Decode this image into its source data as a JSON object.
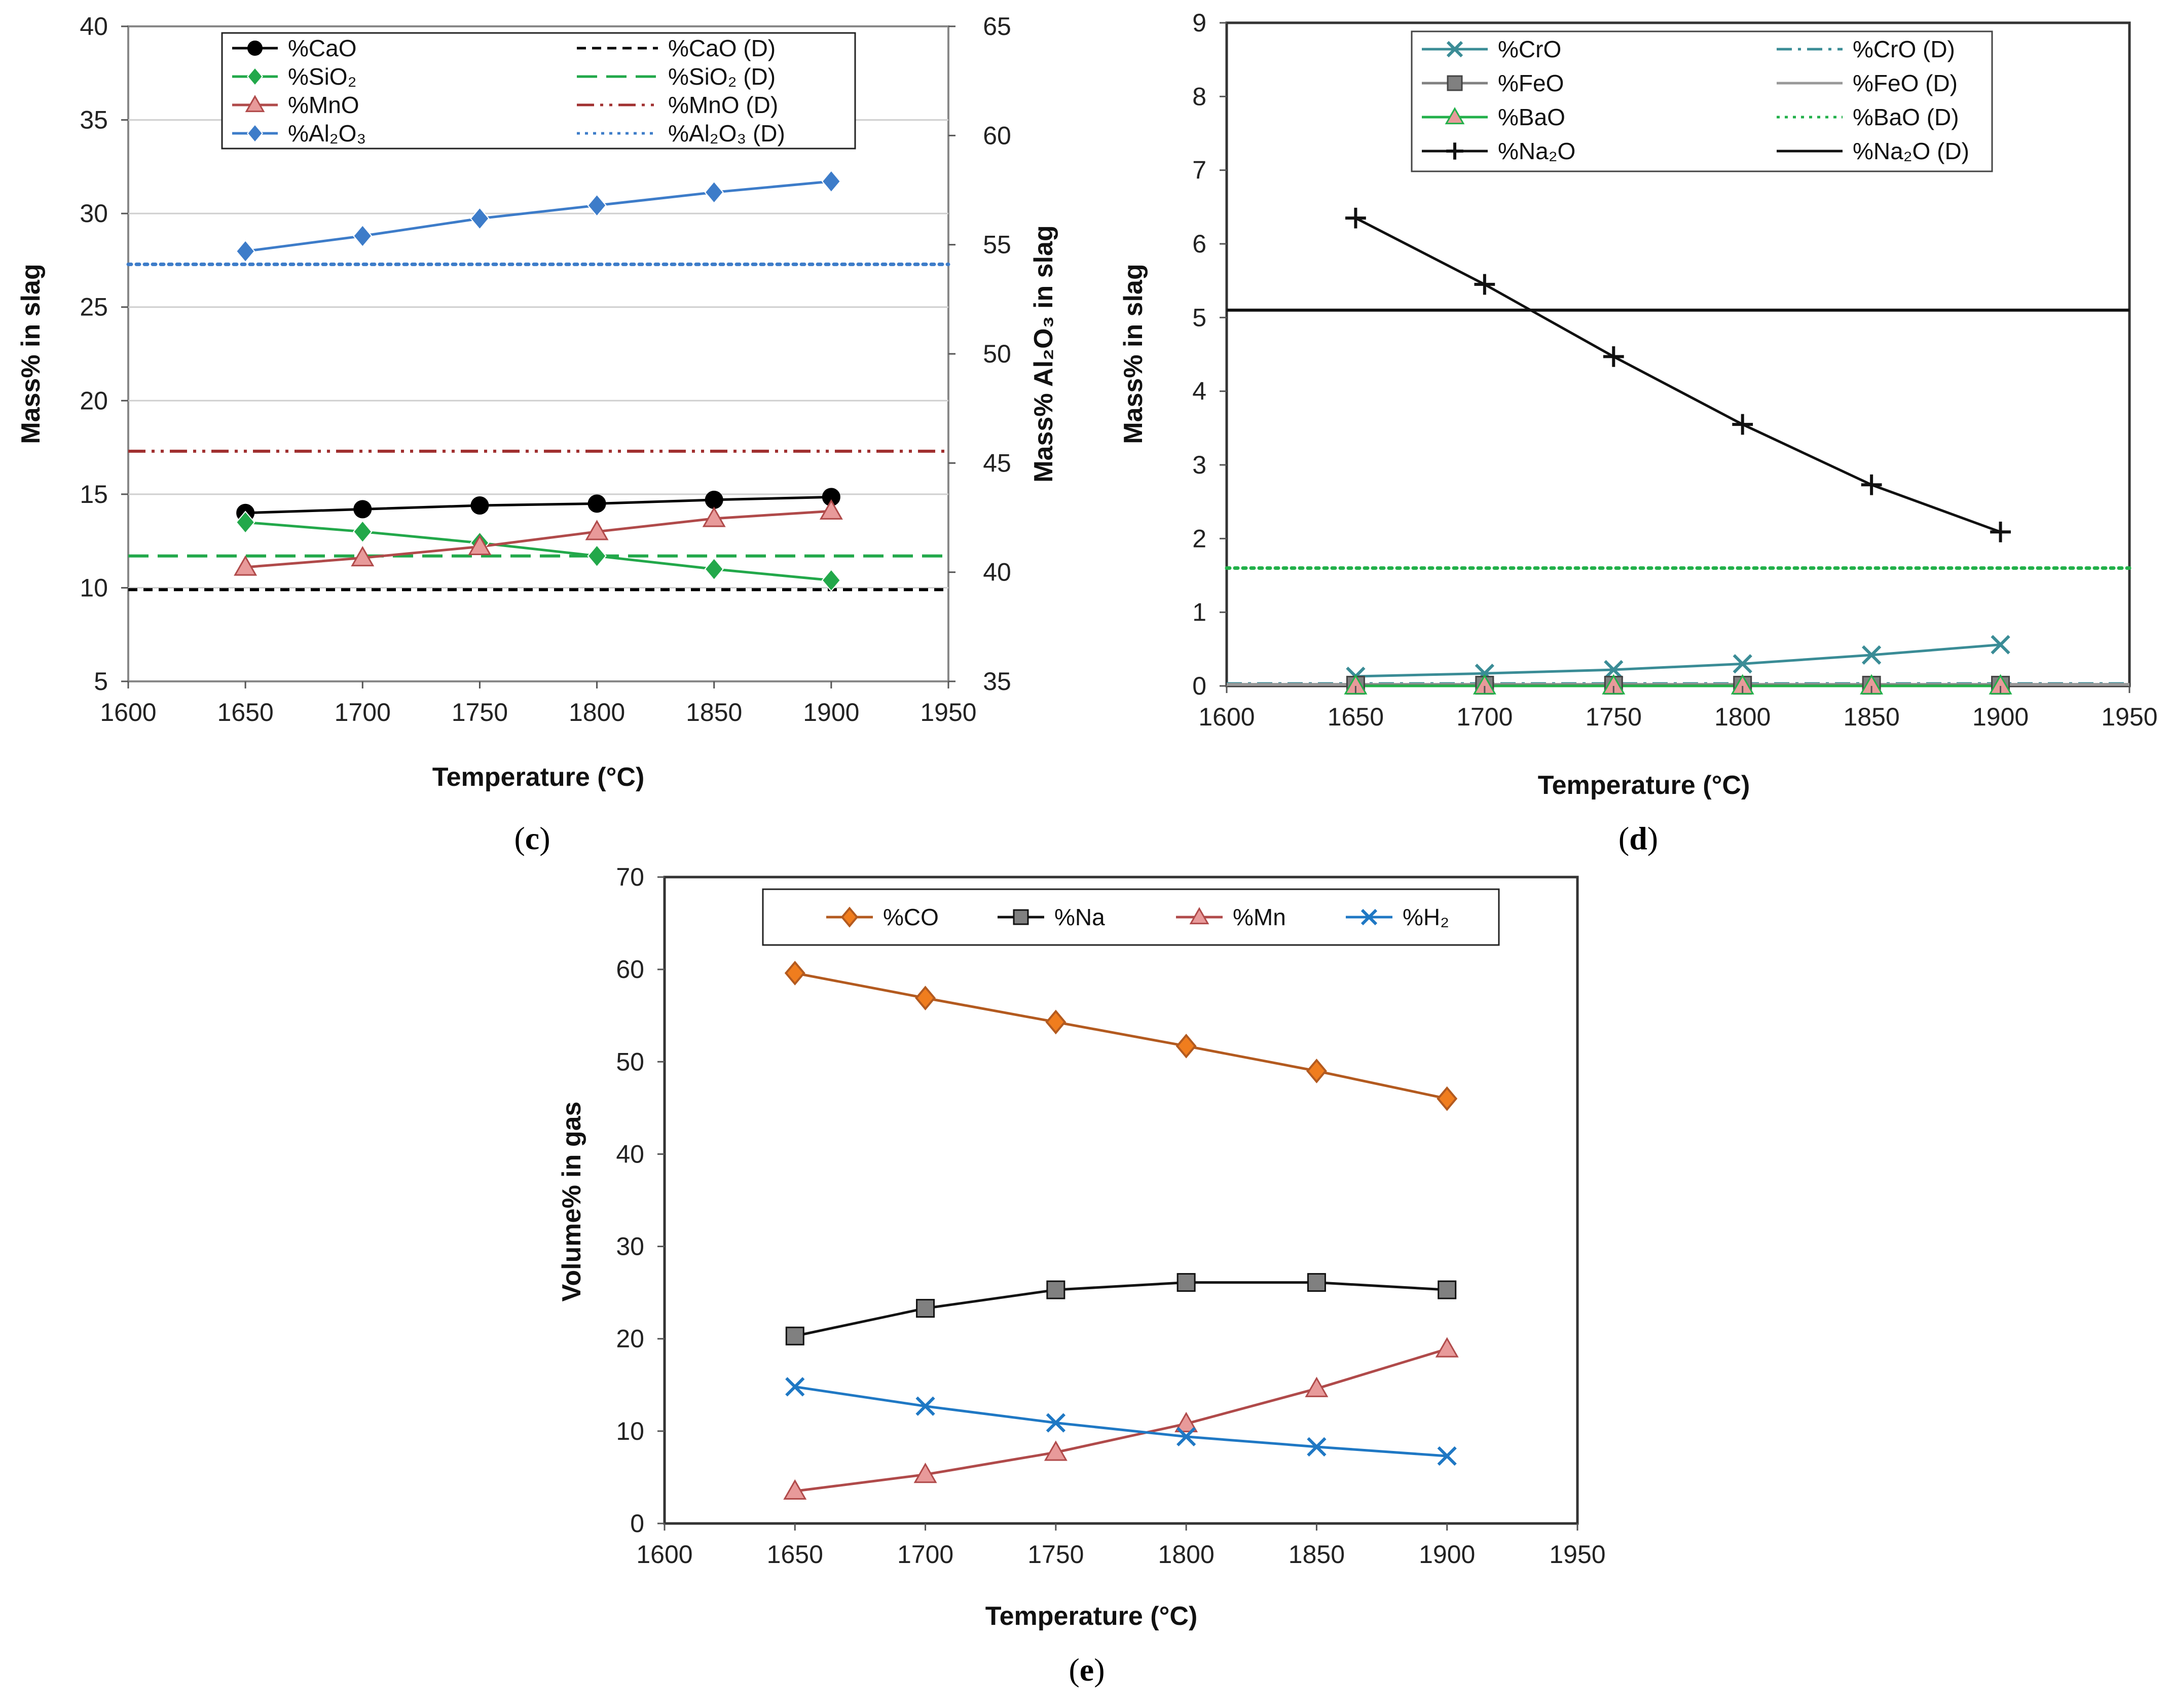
{
  "chart_data": [
    {
      "id": "c",
      "type": "line",
      "panel_label": {
        "open": "(",
        "letter": "c",
        "close": ")"
      },
      "xlabel": "Temperature (°C)",
      "ylabel": "Mass% in slag",
      "ylabel_right": "Mass% Al₂O₃ in slag",
      "xlim": [
        1600,
        1950
      ],
      "ylim": [
        5,
        40
      ],
      "ylim_right": [
        35,
        65
      ],
      "xticks": [
        1600,
        1650,
        1700,
        1750,
        1800,
        1850,
        1900,
        1950
      ],
      "yticks": [
        5,
        10,
        15,
        20,
        25,
        30,
        35,
        40
      ],
      "yticks_right": [
        35,
        40,
        45,
        50,
        55,
        60,
        65
      ],
      "legend_position": "top",
      "series": [
        {
          "name": "%CaO",
          "axis": "left",
          "color": "#000000",
          "marker": "circle",
          "x": [
            1650,
            1700,
            1750,
            1800,
            1850,
            1900
          ],
          "values": [
            14.0,
            14.2,
            14.4,
            14.5,
            14.7,
            14.85
          ]
        },
        {
          "name": "%SiO₂",
          "axis": "left",
          "color": "#22a84a",
          "marker": "diamond",
          "x": [
            1650,
            1700,
            1750,
            1800,
            1850,
            1900
          ],
          "values": [
            13.5,
            13.0,
            12.4,
            11.7,
            11.0,
            10.4
          ]
        },
        {
          "name": "%MnO",
          "axis": "left",
          "color": "#b04a4a",
          "marker": "triangle",
          "x": [
            1650,
            1700,
            1750,
            1800,
            1850,
            1900
          ],
          "values": [
            11.1,
            11.6,
            12.2,
            13.0,
            13.7,
            14.1
          ]
        },
        {
          "name": "%Al₂O₃",
          "axis": "right",
          "color": "#3d7cc9",
          "marker": "diamond",
          "x": [
            1650,
            1700,
            1750,
            1800,
            1850,
            1900
          ],
          "values": [
            54.7,
            55.4,
            56.2,
            56.8,
            57.4,
            57.9
          ]
        }
      ],
      "reference_lines": [
        {
          "name": "%CaO (D)",
          "axis": "left",
          "value": 9.9,
          "color": "#000000",
          "dash": "dash"
        },
        {
          "name": "%SiO₂ (D)",
          "axis": "left",
          "value": 11.7,
          "color": "#22a84a",
          "dash": "longdash"
        },
        {
          "name": "%MnO (D)",
          "axis": "left",
          "value": 17.3,
          "color": "#a03030",
          "dash": "dashdotdot"
        },
        {
          "name": "%Al₂O₃ (D)",
          "axis": "right",
          "value": 54.1,
          "color": "#3d7cc9",
          "dash": "dot"
        }
      ]
    },
    {
      "id": "d",
      "type": "line",
      "panel_label": {
        "open": "(",
        "letter": "d",
        "close": ")"
      },
      "xlabel": "Temperature (°C)",
      "ylabel": "Mass% in slag",
      "xlim": [
        1600,
        1950
      ],
      "ylim": [
        0,
        9
      ],
      "xticks": [
        1600,
        1650,
        1700,
        1750,
        1800,
        1850,
        1900,
        1950
      ],
      "yticks": [
        0,
        1,
        2,
        3,
        4,
        5,
        6,
        7,
        8,
        9
      ],
      "legend_position": "top",
      "series": [
        {
          "name": "%CrO",
          "color": "#3a8c96",
          "marker": "x",
          "x": [
            1650,
            1700,
            1750,
            1800,
            1850,
            1900
          ],
          "values": [
            0.13,
            0.17,
            0.22,
            0.3,
            0.42,
            0.56
          ]
        },
        {
          "name": "%FeO",
          "color": "#808080",
          "marker": "square",
          "x": [
            1650,
            1700,
            1750,
            1800,
            1850,
            1900
          ],
          "values": [
            0.01,
            0.01,
            0.01,
            0.01,
            0.01,
            0.01
          ]
        },
        {
          "name": "%BaO",
          "color": "#22b04a",
          "marker": "triangle",
          "x": [
            1650,
            1700,
            1750,
            1800,
            1850,
            1900
          ],
          "values": [
            0.0,
            0.0,
            0.0,
            0.0,
            0.0,
            0.0
          ]
        },
        {
          "name": "%Na₂O",
          "color": "#111111",
          "marker": "plus",
          "x": [
            1650,
            1700,
            1750,
            1800,
            1850,
            1900
          ],
          "values": [
            6.35,
            5.45,
            4.47,
            3.55,
            2.73,
            2.09
          ]
        }
      ],
      "reference_lines": [
        {
          "name": "%CrO (D)",
          "value": 0.03,
          "color": "#3a8c96",
          "dash": "dashdot"
        },
        {
          "name": "%FeO (D)",
          "value": 0.02,
          "color": "#999999",
          "dash": "solid"
        },
        {
          "name": "%BaO (D)",
          "value": 1.6,
          "color": "#22b04a",
          "dash": "dot"
        },
        {
          "name": "%Na₂O (D)",
          "value": 5.1,
          "color": "#111111",
          "dash": "solid"
        }
      ]
    },
    {
      "id": "e",
      "type": "line",
      "panel_label": {
        "open": "(",
        "letter": "e",
        "close": ")"
      },
      "xlabel": "Temperature (°C)",
      "ylabel": "Volume% in gas",
      "xlim": [
        1600,
        1950
      ],
      "ylim": [
        0,
        70
      ],
      "xticks": [
        1600,
        1650,
        1700,
        1750,
        1800,
        1850,
        1900,
        1950
      ],
      "yticks": [
        0,
        10,
        20,
        30,
        40,
        50,
        60,
        70
      ],
      "legend_position": "top",
      "series": [
        {
          "name": "%CO",
          "color": "#b35a1f",
          "marker_fill": "#f07d1e",
          "marker": "diamond",
          "x": [
            1650,
            1700,
            1750,
            1800,
            1850,
            1900
          ],
          "values": [
            59.6,
            56.9,
            54.3,
            51.7,
            49.0,
            46.0
          ]
        },
        {
          "name": "%Na",
          "color": "#111111",
          "marker_fill": "#808080",
          "marker": "square",
          "x": [
            1650,
            1700,
            1750,
            1800,
            1850,
            1900
          ],
          "values": [
            20.3,
            23.3,
            25.3,
            26.1,
            26.1,
            25.3
          ]
        },
        {
          "name": "%Mn",
          "color": "#b04a4a",
          "marker_fill": "#e89a9a",
          "marker": "triangle",
          "x": [
            1650,
            1700,
            1750,
            1800,
            1850,
            1900
          ],
          "values": [
            3.5,
            5.3,
            7.7,
            10.8,
            14.6,
            18.9
          ]
        },
        {
          "name": "%H₂",
          "color": "#1f78c4",
          "marker": "x",
          "x": [
            1650,
            1700,
            1750,
            1800,
            1850,
            1900
          ],
          "values": [
            14.8,
            12.7,
            10.9,
            9.4,
            8.3,
            7.3
          ]
        }
      ],
      "reference_lines": []
    }
  ]
}
